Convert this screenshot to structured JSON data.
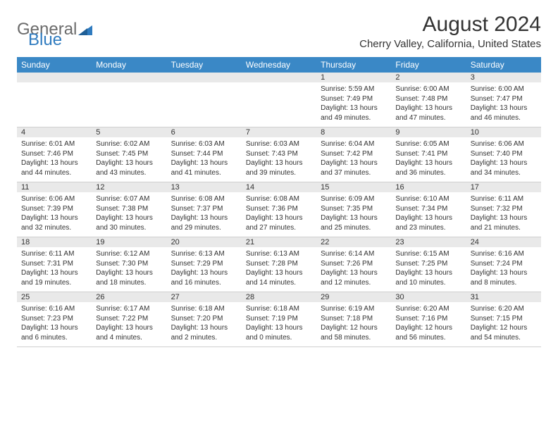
{
  "brand": {
    "part1": "General",
    "part2": "Blue",
    "accent": "#2f7bbf",
    "gray": "#6b6b6b"
  },
  "title": "August 2024",
  "location": "Cherry Valley, California, United States",
  "header_bg": "#3a88c6",
  "daynum_bg": "#e9e9e9",
  "border_color": "#cfcfcf",
  "weekdays": [
    "Sunday",
    "Monday",
    "Tuesday",
    "Wednesday",
    "Thursday",
    "Friday",
    "Saturday"
  ],
  "weeks": [
    [
      null,
      null,
      null,
      null,
      {
        "n": "1",
        "sunrise": "Sunrise: 5:59 AM",
        "sunset": "Sunset: 7:49 PM",
        "daylight": "Daylight: 13 hours and 49 minutes."
      },
      {
        "n": "2",
        "sunrise": "Sunrise: 6:00 AM",
        "sunset": "Sunset: 7:48 PM",
        "daylight": "Daylight: 13 hours and 47 minutes."
      },
      {
        "n": "3",
        "sunrise": "Sunrise: 6:00 AM",
        "sunset": "Sunset: 7:47 PM",
        "daylight": "Daylight: 13 hours and 46 minutes."
      }
    ],
    [
      {
        "n": "4",
        "sunrise": "Sunrise: 6:01 AM",
        "sunset": "Sunset: 7:46 PM",
        "daylight": "Daylight: 13 hours and 44 minutes."
      },
      {
        "n": "5",
        "sunrise": "Sunrise: 6:02 AM",
        "sunset": "Sunset: 7:45 PM",
        "daylight": "Daylight: 13 hours and 43 minutes."
      },
      {
        "n": "6",
        "sunrise": "Sunrise: 6:03 AM",
        "sunset": "Sunset: 7:44 PM",
        "daylight": "Daylight: 13 hours and 41 minutes."
      },
      {
        "n": "7",
        "sunrise": "Sunrise: 6:03 AM",
        "sunset": "Sunset: 7:43 PM",
        "daylight": "Daylight: 13 hours and 39 minutes."
      },
      {
        "n": "8",
        "sunrise": "Sunrise: 6:04 AM",
        "sunset": "Sunset: 7:42 PM",
        "daylight": "Daylight: 13 hours and 37 minutes."
      },
      {
        "n": "9",
        "sunrise": "Sunrise: 6:05 AM",
        "sunset": "Sunset: 7:41 PM",
        "daylight": "Daylight: 13 hours and 36 minutes."
      },
      {
        "n": "10",
        "sunrise": "Sunrise: 6:06 AM",
        "sunset": "Sunset: 7:40 PM",
        "daylight": "Daylight: 13 hours and 34 minutes."
      }
    ],
    [
      {
        "n": "11",
        "sunrise": "Sunrise: 6:06 AM",
        "sunset": "Sunset: 7:39 PM",
        "daylight": "Daylight: 13 hours and 32 minutes."
      },
      {
        "n": "12",
        "sunrise": "Sunrise: 6:07 AM",
        "sunset": "Sunset: 7:38 PM",
        "daylight": "Daylight: 13 hours and 30 minutes."
      },
      {
        "n": "13",
        "sunrise": "Sunrise: 6:08 AM",
        "sunset": "Sunset: 7:37 PM",
        "daylight": "Daylight: 13 hours and 29 minutes."
      },
      {
        "n": "14",
        "sunrise": "Sunrise: 6:08 AM",
        "sunset": "Sunset: 7:36 PM",
        "daylight": "Daylight: 13 hours and 27 minutes."
      },
      {
        "n": "15",
        "sunrise": "Sunrise: 6:09 AM",
        "sunset": "Sunset: 7:35 PM",
        "daylight": "Daylight: 13 hours and 25 minutes."
      },
      {
        "n": "16",
        "sunrise": "Sunrise: 6:10 AM",
        "sunset": "Sunset: 7:34 PM",
        "daylight": "Daylight: 13 hours and 23 minutes."
      },
      {
        "n": "17",
        "sunrise": "Sunrise: 6:11 AM",
        "sunset": "Sunset: 7:32 PM",
        "daylight": "Daylight: 13 hours and 21 minutes."
      }
    ],
    [
      {
        "n": "18",
        "sunrise": "Sunrise: 6:11 AM",
        "sunset": "Sunset: 7:31 PM",
        "daylight": "Daylight: 13 hours and 19 minutes."
      },
      {
        "n": "19",
        "sunrise": "Sunrise: 6:12 AM",
        "sunset": "Sunset: 7:30 PM",
        "daylight": "Daylight: 13 hours and 18 minutes."
      },
      {
        "n": "20",
        "sunrise": "Sunrise: 6:13 AM",
        "sunset": "Sunset: 7:29 PM",
        "daylight": "Daylight: 13 hours and 16 minutes."
      },
      {
        "n": "21",
        "sunrise": "Sunrise: 6:13 AM",
        "sunset": "Sunset: 7:28 PM",
        "daylight": "Daylight: 13 hours and 14 minutes."
      },
      {
        "n": "22",
        "sunrise": "Sunrise: 6:14 AM",
        "sunset": "Sunset: 7:26 PM",
        "daylight": "Daylight: 13 hours and 12 minutes."
      },
      {
        "n": "23",
        "sunrise": "Sunrise: 6:15 AM",
        "sunset": "Sunset: 7:25 PM",
        "daylight": "Daylight: 13 hours and 10 minutes."
      },
      {
        "n": "24",
        "sunrise": "Sunrise: 6:16 AM",
        "sunset": "Sunset: 7:24 PM",
        "daylight": "Daylight: 13 hours and 8 minutes."
      }
    ],
    [
      {
        "n": "25",
        "sunrise": "Sunrise: 6:16 AM",
        "sunset": "Sunset: 7:23 PM",
        "daylight": "Daylight: 13 hours and 6 minutes."
      },
      {
        "n": "26",
        "sunrise": "Sunrise: 6:17 AM",
        "sunset": "Sunset: 7:22 PM",
        "daylight": "Daylight: 13 hours and 4 minutes."
      },
      {
        "n": "27",
        "sunrise": "Sunrise: 6:18 AM",
        "sunset": "Sunset: 7:20 PM",
        "daylight": "Daylight: 13 hours and 2 minutes."
      },
      {
        "n": "28",
        "sunrise": "Sunrise: 6:18 AM",
        "sunset": "Sunset: 7:19 PM",
        "daylight": "Daylight: 13 hours and 0 minutes."
      },
      {
        "n": "29",
        "sunrise": "Sunrise: 6:19 AM",
        "sunset": "Sunset: 7:18 PM",
        "daylight": "Daylight: 12 hours and 58 minutes."
      },
      {
        "n": "30",
        "sunrise": "Sunrise: 6:20 AM",
        "sunset": "Sunset: 7:16 PM",
        "daylight": "Daylight: 12 hours and 56 minutes."
      },
      {
        "n": "31",
        "sunrise": "Sunrise: 6:20 AM",
        "sunset": "Sunset: 7:15 PM",
        "daylight": "Daylight: 12 hours and 54 minutes."
      }
    ]
  ]
}
